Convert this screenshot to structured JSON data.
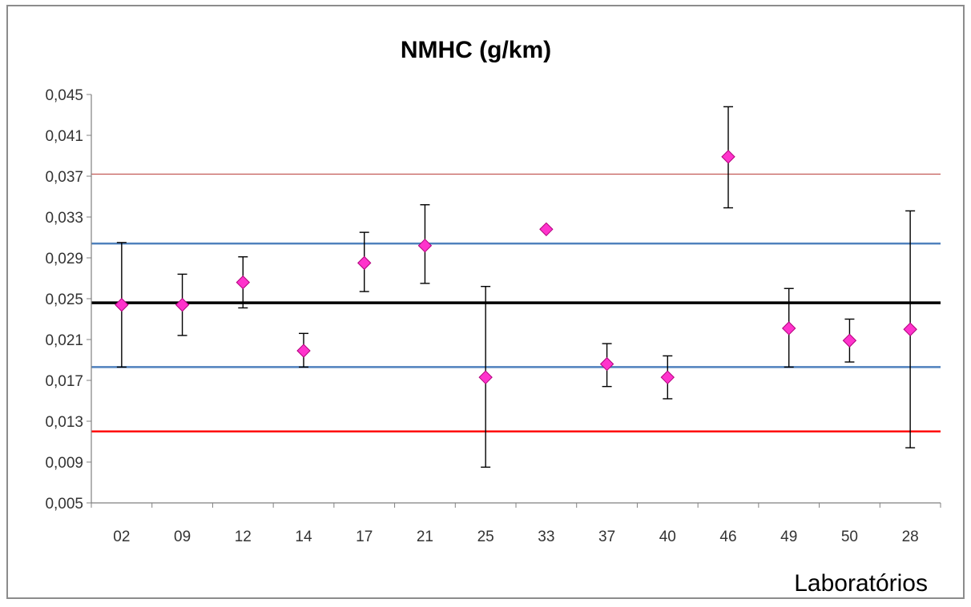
{
  "chart_data": {
    "type": "scatter",
    "title": "NMHC  (g/km)",
    "xlabel": "Laboratórios",
    "ylabel": "",
    "ylim": [
      0.005,
      0.045
    ],
    "y_ticks": [
      0.005,
      0.009,
      0.013,
      0.017,
      0.021,
      0.025,
      0.029,
      0.033,
      0.037,
      0.041,
      0.045
    ],
    "y_tick_labels": [
      "0,005",
      "0,009",
      "0,013",
      "0,017",
      "0,021",
      "0,025",
      "0,029",
      "0,033",
      "0,037",
      "0,041",
      "0,045"
    ],
    "categories": [
      "02",
      "09",
      "12",
      "14",
      "17",
      "21",
      "25",
      "33",
      "37",
      "40",
      "46",
      "49",
      "50",
      "28"
    ],
    "series": [
      {
        "values": [
          0.0244,
          0.0244,
          0.0266,
          0.0199,
          0.0285,
          0.0302,
          0.0173,
          0.0318,
          0.0186,
          0.0173,
          0.0389,
          0.0221,
          0.0209,
          0.022
        ],
        "error_low": [
          0.0183,
          0.0214,
          0.0241,
          0.0183,
          0.0257,
          0.0265,
          0.0085,
          null,
          0.0164,
          0.0152,
          0.0339,
          0.0183,
          0.0188,
          0.0104
        ],
        "error_high": [
          0.0305,
          0.0274,
          0.0291,
          0.0216,
          0.0315,
          0.0342,
          0.0262,
          null,
          0.0206,
          0.0194,
          0.0438,
          0.026,
          0.023,
          0.0336
        ],
        "marker_color": "#ff33cc"
      }
    ],
    "reference_lines": [
      {
        "y": 0.0246,
        "color": "#000000"
      },
      {
        "y": 0.0304,
        "color": "#4f81bd"
      },
      {
        "y": 0.0183,
        "color": "#4f81bd"
      },
      {
        "y": 0.0372,
        "color": "#c0504d"
      },
      {
        "y": 0.012,
        "color": "#ff0000"
      }
    ],
    "grid": false,
    "legend": "none"
  }
}
